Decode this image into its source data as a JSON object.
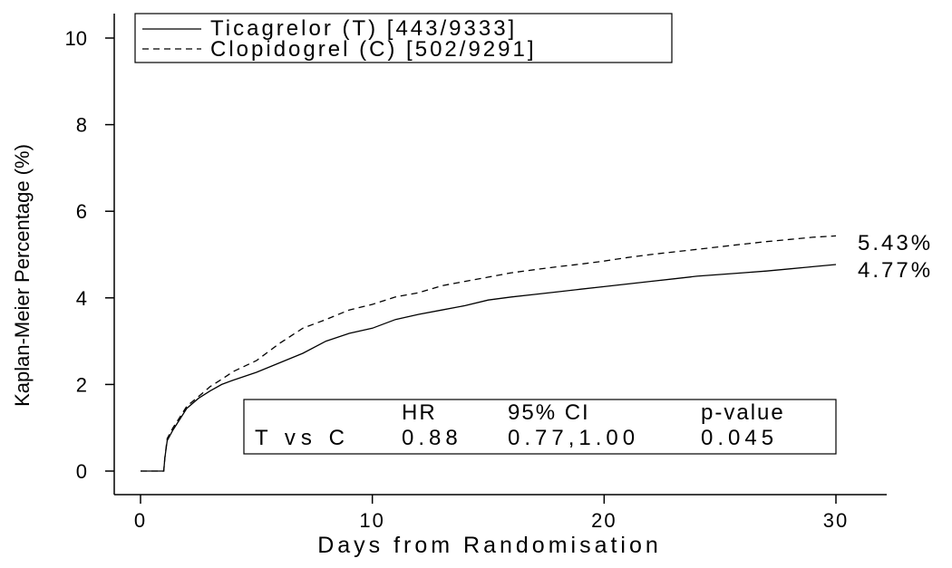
{
  "chart_data": {
    "type": "line",
    "title": "",
    "xlabel": "Days from Randomisation",
    "ylabel": "Kaplan-Meier Percentage (%)",
    "xlim": [
      0,
      30
    ],
    "ylim": [
      0,
      10
    ],
    "x_ticks": [
      "0",
      "10",
      "20",
      "30"
    ],
    "y_ticks": [
      "0",
      "2",
      "4",
      "6",
      "8",
      "10"
    ],
    "grid": false,
    "legend_position": "top-left",
    "series": [
      {
        "name": "Ticagrelor (T) [443/9333]",
        "style": "solid",
        "end_label": "4.77%",
        "points": [
          [
            0,
            0
          ],
          [
            1,
            0
          ],
          [
            1.05,
            0.3
          ],
          [
            1.15,
            0.7
          ],
          [
            1.4,
            0.95
          ],
          [
            1.7,
            1.2
          ],
          [
            2,
            1.45
          ],
          [
            2.5,
            1.68
          ],
          [
            3,
            1.85
          ],
          [
            3.5,
            2.0
          ],
          [
            4,
            2.1
          ],
          [
            5,
            2.28
          ],
          [
            6,
            2.5
          ],
          [
            7,
            2.72
          ],
          [
            8,
            3.0
          ],
          [
            9,
            3.18
          ],
          [
            10,
            3.3
          ],
          [
            11,
            3.5
          ],
          [
            12,
            3.62
          ],
          [
            13,
            3.72
          ],
          [
            14,
            3.82
          ],
          [
            15,
            3.95
          ],
          [
            16,
            4.02
          ],
          [
            17,
            4.08
          ],
          [
            18,
            4.14
          ],
          [
            19,
            4.2
          ],
          [
            20,
            4.26
          ],
          [
            21,
            4.32
          ],
          [
            22,
            4.38
          ],
          [
            23,
            4.44
          ],
          [
            24,
            4.5
          ],
          [
            25,
            4.54
          ],
          [
            26,
            4.58
          ],
          [
            27,
            4.62
          ],
          [
            28,
            4.67
          ],
          [
            29,
            4.72
          ],
          [
            30,
            4.77
          ]
        ]
      },
      {
        "name": "Clopidogrel (C) [502/9291]",
        "style": "dashed",
        "end_label": "5.43%",
        "points": [
          [
            0,
            0
          ],
          [
            1,
            0
          ],
          [
            1.05,
            0.3
          ],
          [
            1.15,
            0.75
          ],
          [
            1.4,
            1.0
          ],
          [
            1.7,
            1.25
          ],
          [
            2,
            1.5
          ],
          [
            2.5,
            1.72
          ],
          [
            3,
            1.95
          ],
          [
            3.5,
            2.12
          ],
          [
            4,
            2.3
          ],
          [
            5,
            2.55
          ],
          [
            6,
            2.95
          ],
          [
            7,
            3.3
          ],
          [
            8,
            3.5
          ],
          [
            9,
            3.72
          ],
          [
            10,
            3.85
          ],
          [
            11,
            4.02
          ],
          [
            12,
            4.12
          ],
          [
            13,
            4.28
          ],
          [
            14,
            4.38
          ],
          [
            15,
            4.48
          ],
          [
            16,
            4.58
          ],
          [
            17,
            4.65
          ],
          [
            18,
            4.72
          ],
          [
            19,
            4.78
          ],
          [
            20,
            4.85
          ],
          [
            21,
            4.93
          ],
          [
            22,
            5.0
          ],
          [
            23,
            5.06
          ],
          [
            24,
            5.12
          ],
          [
            25,
            5.18
          ],
          [
            26,
            5.24
          ],
          [
            27,
            5.3
          ],
          [
            28,
            5.35
          ],
          [
            29,
            5.4
          ],
          [
            30,
            5.43
          ]
        ]
      }
    ],
    "stats_table": {
      "headers": [
        "",
        "HR",
        "95% CI",
        "p-value"
      ],
      "row": [
        "T vs C",
        "0.88",
        "0.77,1.00",
        "0.045"
      ]
    }
  }
}
